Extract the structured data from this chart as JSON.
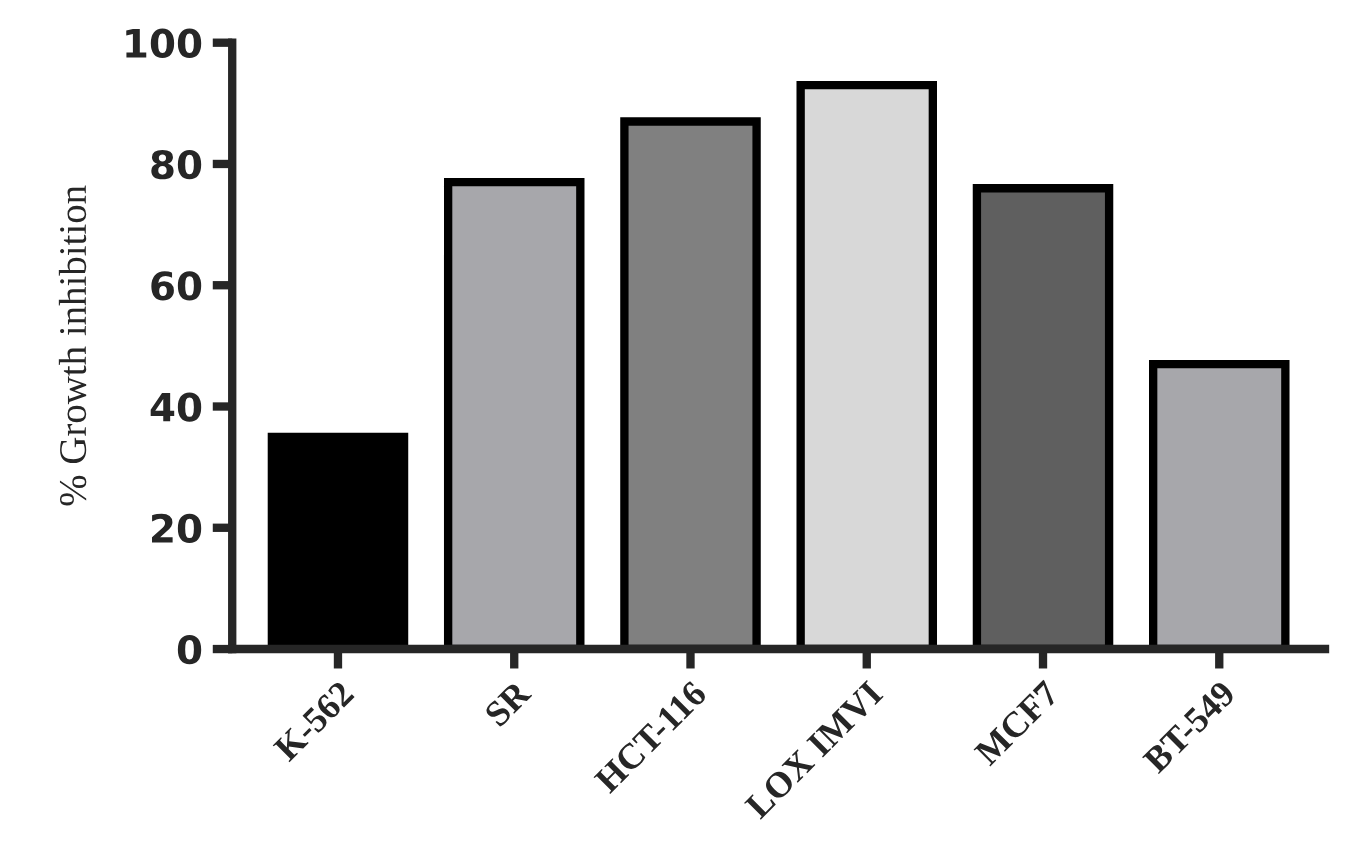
{
  "chart_data": {
    "type": "bar",
    "ylabel": "% Growth inhibition",
    "categories": [
      "K-562",
      "SR",
      "HCT-116",
      "LOX IMVI",
      "MCF7",
      "BT-549"
    ],
    "values": [
      35,
      77,
      87,
      93,
      76,
      47
    ],
    "colors": [
      "#000000",
      "#a7a7ab",
      "#808080",
      "#d8d8d8",
      "#5f5f5f",
      "#a7a7ab"
    ],
    "ylim": [
      0,
      100
    ],
    "yticks": [
      0,
      20,
      40,
      60,
      80,
      100
    ],
    "grid": false
  }
}
